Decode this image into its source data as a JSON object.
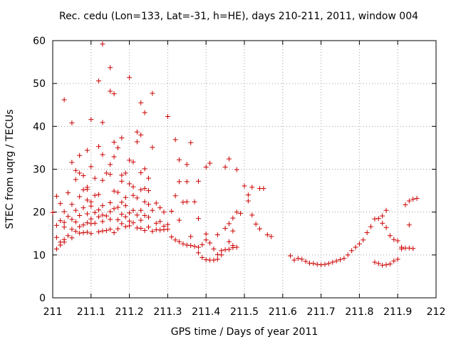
{
  "chart_data": {
    "type": "scatter",
    "title": "Rec. cedu (Lon=133, Lat=-31, h=HE), days 210-211, 2011, window 004",
    "xlabel": "GPS time / Days of year 2011",
    "ylabel": "STEC from uqrg / TECUs",
    "xlim": [
      211,
      212
    ],
    "ylim": [
      0,
      60
    ],
    "xticks": [
      "211",
      "211.1",
      "211.2",
      "211.3",
      "211.4",
      "211.5",
      "211.6",
      "211.7",
      "211.8",
      "211.9",
      "212"
    ],
    "yticks": [
      "0",
      "10",
      "20",
      "30",
      "40",
      "50",
      "60"
    ],
    "grid": true,
    "marker": "plus",
    "color": "#cc0000",
    "points": [
      [
        211.0,
        19.9
      ],
      [
        211.01,
        23.7
      ],
      [
        211.01,
        16.9
      ],
      [
        211.01,
        14.1
      ],
      [
        211.01,
        11.4
      ],
      [
        211.02,
        22.0
      ],
      [
        211.02,
        18.0
      ],
      [
        211.02,
        13.0
      ],
      [
        211.02,
        12.3
      ],
      [
        211.03,
        46.2
      ],
      [
        211.03,
        20.1
      ],
      [
        211.03,
        17.6
      ],
      [
        211.03,
        16.5
      ],
      [
        211.03,
        13.6
      ],
      [
        211.03,
        13.0
      ],
      [
        211.04,
        24.5
      ],
      [
        211.04,
        19.0
      ],
      [
        211.04,
        14.5
      ],
      [
        211.05,
        40.8
      ],
      [
        211.05,
        31.6
      ],
      [
        211.05,
        21.8
      ],
      [
        211.05,
        18.3
      ],
      [
        211.05,
        16.0
      ],
      [
        211.05,
        14.0
      ],
      [
        211.06,
        29.7
      ],
      [
        211.06,
        27.6
      ],
      [
        211.06,
        20.4
      ],
      [
        211.06,
        17.7
      ],
      [
        211.06,
        15.5
      ],
      [
        211.07,
        33.2
      ],
      [
        211.07,
        29.1
      ],
      [
        211.07,
        23.6
      ],
      [
        211.07,
        19.2
      ],
      [
        211.07,
        16.6
      ],
      [
        211.07,
        15.1
      ],
      [
        211.08,
        28.5
      ],
      [
        211.08,
        25.2
      ],
      [
        211.08,
        21.0
      ],
      [
        211.08,
        17.0
      ],
      [
        211.08,
        15.2
      ],
      [
        211.09,
        34.4
      ],
      [
        211.09,
        25.8
      ],
      [
        211.09,
        25.3
      ],
      [
        211.09,
        22.8
      ],
      [
        211.09,
        19.6
      ],
      [
        211.09,
        17.5
      ],
      [
        211.09,
        15.3
      ],
      [
        211.1,
        41.6
      ],
      [
        211.1,
        30.6
      ],
      [
        211.1,
        22.4
      ],
      [
        211.1,
        21.4
      ],
      [
        211.1,
        18.4
      ],
      [
        211.1,
        17.3
      ],
      [
        211.1,
        15.0
      ],
      [
        211.11,
        27.9
      ],
      [
        211.11,
        23.9
      ],
      [
        211.11,
        19.9
      ],
      [
        211.11,
        17.4
      ],
      [
        211.12,
        50.6
      ],
      [
        211.12,
        35.3
      ],
      [
        211.12,
        24.1
      ],
      [
        211.12,
        20.5
      ],
      [
        211.12,
        18.9
      ],
      [
        211.12,
        15.4
      ],
      [
        211.13,
        59.2
      ],
      [
        211.13,
        40.9
      ],
      [
        211.13,
        33.4
      ],
      [
        211.13,
        27.4
      ],
      [
        211.13,
        21.5
      ],
      [
        211.13,
        19.3
      ],
      [
        211.13,
        17.8
      ],
      [
        211.13,
        15.6
      ],
      [
        211.14,
        29.1
      ],
      [
        211.14,
        19.1
      ],
      [
        211.14,
        15.7
      ],
      [
        211.15,
        53.7
      ],
      [
        211.15,
        48.2
      ],
      [
        211.15,
        31.1
      ],
      [
        211.15,
        28.8
      ],
      [
        211.15,
        22.2
      ],
      [
        211.15,
        20.1
      ],
      [
        211.15,
        18.3
      ],
      [
        211.15,
        16.0
      ],
      [
        211.16,
        47.6
      ],
      [
        211.16,
        36.3
      ],
      [
        211.16,
        32.9
      ],
      [
        211.16,
        24.9
      ],
      [
        211.16,
        20.8
      ],
      [
        211.16,
        15.2
      ],
      [
        211.17,
        35.0
      ],
      [
        211.17,
        24.6
      ],
      [
        211.17,
        21.1
      ],
      [
        211.17,
        18.2
      ],
      [
        211.17,
        16.1
      ],
      [
        211.18,
        37.3
      ],
      [
        211.18,
        28.6
      ],
      [
        211.18,
        27.2
      ],
      [
        211.18,
        22.3
      ],
      [
        211.18,
        19.5
      ],
      [
        211.18,
        17.3
      ],
      [
        211.19,
        29.1
      ],
      [
        211.19,
        23.4
      ],
      [
        211.19,
        21.5
      ],
      [
        211.19,
        18.9
      ],
      [
        211.19,
        16.6
      ],
      [
        211.2,
        51.4
      ],
      [
        211.2,
        32.1
      ],
      [
        211.2,
        26.6
      ],
      [
        211.2,
        19.8
      ],
      [
        211.2,
        17.9
      ],
      [
        211.2,
        16.8
      ],
      [
        211.21,
        31.7
      ],
      [
        211.21,
        25.9
      ],
      [
        211.21,
        23.9
      ],
      [
        211.21,
        20.4
      ],
      [
        211.21,
        17.5
      ],
      [
        211.22,
        38.7
      ],
      [
        211.22,
        36.4
      ],
      [
        211.22,
        23.3
      ],
      [
        211.22,
        19.3
      ],
      [
        211.22,
        16.3
      ],
      [
        211.23,
        45.5
      ],
      [
        211.23,
        38.0
      ],
      [
        211.23,
        29.2
      ],
      [
        211.23,
        25.2
      ],
      [
        211.23,
        20.4
      ],
      [
        211.23,
        18.1
      ],
      [
        211.23,
        16.2
      ],
      [
        211.24,
        43.2
      ],
      [
        211.24,
        30.1
      ],
      [
        211.24,
        25.5
      ],
      [
        211.24,
        22.4
      ],
      [
        211.24,
        19.2
      ],
      [
        211.24,
        15.7
      ],
      [
        211.25,
        27.9
      ],
      [
        211.25,
        25.0
      ],
      [
        211.25,
        21.8
      ],
      [
        211.25,
        18.8
      ],
      [
        211.25,
        16.5
      ],
      [
        211.26,
        47.7
      ],
      [
        211.26,
        35.1
      ],
      [
        211.26,
        20.4
      ],
      [
        211.26,
        15.5
      ],
      [
        211.27,
        22.1
      ],
      [
        211.27,
        17.4
      ],
      [
        211.27,
        15.9
      ],
      [
        211.28,
        21.0
      ],
      [
        211.28,
        17.8
      ],
      [
        211.28,
        15.8
      ],
      [
        211.29,
        20.0
      ],
      [
        211.29,
        16.7
      ],
      [
        211.29,
        15.9
      ],
      [
        211.3,
        42.3
      ],
      [
        211.3,
        17.1
      ],
      [
        211.3,
        16.0
      ],
      [
        211.31,
        20.2
      ],
      [
        211.31,
        14.2
      ],
      [
        211.32,
        36.9
      ],
      [
        211.32,
        23.8
      ],
      [
        211.32,
        13.5
      ],
      [
        211.33,
        32.2
      ],
      [
        211.33,
        27.1
      ],
      [
        211.33,
        18.1
      ],
      [
        211.33,
        13.1
      ],
      [
        211.34,
        22.3
      ],
      [
        211.34,
        12.6
      ],
      [
        211.35,
        31.1
      ],
      [
        211.35,
        27.1
      ],
      [
        211.35,
        22.4
      ],
      [
        211.35,
        12.3
      ],
      [
        211.36,
        36.2
      ],
      [
        211.36,
        14.3
      ],
      [
        211.36,
        12.2
      ],
      [
        211.37,
        22.4
      ],
      [
        211.37,
        12.0
      ],
      [
        211.38,
        27.2
      ],
      [
        211.38,
        18.5
      ],
      [
        211.38,
        11.8
      ],
      [
        211.38,
        10.5
      ],
      [
        211.39,
        12.4
      ],
      [
        211.39,
        9.4
      ],
      [
        211.4,
        30.5
      ],
      [
        211.4,
        14.9
      ],
      [
        211.4,
        13.5
      ],
      [
        211.4,
        8.9
      ],
      [
        211.41,
        31.4
      ],
      [
        211.41,
        12.8
      ],
      [
        211.41,
        8.8
      ],
      [
        211.42,
        11.4
      ],
      [
        211.42,
        8.8
      ],
      [
        211.43,
        14.7
      ],
      [
        211.43,
        10.1
      ],
      [
        211.43,
        9.0
      ],
      [
        211.44,
        11.0
      ],
      [
        211.44,
        10.0
      ],
      [
        211.45,
        30.5
      ],
      [
        211.45,
        16.2
      ],
      [
        211.45,
        11.2
      ],
      [
        211.46,
        32.4
      ],
      [
        211.46,
        17.3
      ],
      [
        211.46,
        13.1
      ],
      [
        211.46,
        11.3
      ],
      [
        211.47,
        18.6
      ],
      [
        211.47,
        15.6
      ],
      [
        211.47,
        12.2
      ],
      [
        211.47,
        11.7
      ],
      [
        211.48,
        29.9
      ],
      [
        211.48,
        20.0
      ],
      [
        211.48,
        11.8
      ],
      [
        211.49,
        19.7
      ],
      [
        211.5,
        26.1
      ],
      [
        211.51,
        24.0
      ],
      [
        211.51,
        22.6
      ],
      [
        211.52,
        25.8
      ],
      [
        211.52,
        19.3
      ],
      [
        211.53,
        17.2
      ],
      [
        211.54,
        25.5
      ],
      [
        211.54,
        16.1
      ],
      [
        211.55,
        25.5
      ],
      [
        211.56,
        14.7
      ],
      [
        211.57,
        14.3
      ],
      [
        211.62,
        9.8
      ],
      [
        211.63,
        8.8
      ],
      [
        211.64,
        9.2
      ],
      [
        211.65,
        9.0
      ],
      [
        211.66,
        8.5
      ],
      [
        211.67,
        8.1
      ],
      [
        211.68,
        8.0
      ],
      [
        211.69,
        7.8
      ],
      [
        211.7,
        7.7
      ],
      [
        211.71,
        7.8
      ],
      [
        211.72,
        8.0
      ],
      [
        211.73,
        8.3
      ],
      [
        211.74,
        8.6
      ],
      [
        211.75,
        8.9
      ],
      [
        211.76,
        9.2
      ],
      [
        211.77,
        10.0
      ],
      [
        211.78,
        11.0
      ],
      [
        211.79,
        11.8
      ],
      [
        211.8,
        12.6
      ],
      [
        211.81,
        13.5
      ],
      [
        211.82,
        15.2
      ],
      [
        211.83,
        16.6
      ],
      [
        211.84,
        18.4
      ],
      [
        211.84,
        8.3
      ],
      [
        211.85,
        18.5
      ],
      [
        211.85,
        8.0
      ],
      [
        211.86,
        19.1
      ],
      [
        211.86,
        17.4
      ],
      [
        211.86,
        7.6
      ],
      [
        211.87,
        20.4
      ],
      [
        211.87,
        16.4
      ],
      [
        211.87,
        7.7
      ],
      [
        211.88,
        14.5
      ],
      [
        211.88,
        7.9
      ],
      [
        211.89,
        13.6
      ],
      [
        211.89,
        8.6
      ],
      [
        211.9,
        13.3
      ],
      [
        211.9,
        9.0
      ],
      [
        211.91,
        11.8
      ],
      [
        211.91,
        11.4
      ],
      [
        211.92,
        21.7
      ],
      [
        211.92,
        11.6
      ],
      [
        211.93,
        22.6
      ],
      [
        211.93,
        17.0
      ],
      [
        211.93,
        11.6
      ],
      [
        211.94,
        23.0
      ],
      [
        211.94,
        11.5
      ],
      [
        211.95,
        23.2
      ]
    ]
  }
}
